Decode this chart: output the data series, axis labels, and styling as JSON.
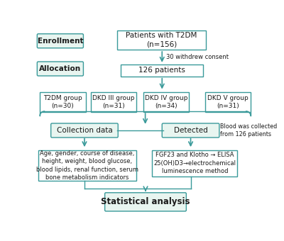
{
  "bg_color": "#ffffff",
  "teal": "#3a9a9a",
  "teal_fill": "#e8f5f0",
  "text_color": "#1a1a1a",
  "enrollment_label": "Enrollment",
  "allocation_label": "Allocation",
  "top_box_text": "Patients with T2DM\n(n=156)",
  "withdrew_text": "30 withdrew consent",
  "patients_box_text": "126 patients",
  "group_boxes": [
    "T2DM group\n(n=30)",
    "DKD III group\n(n=31)",
    "DKD IV group\n(n=34)",
    "DKD V group\n(n=31)"
  ],
  "collect_box_text": "Collection data",
  "detected_box_text": "Detected",
  "blood_note_text": "Blood was collected\nfrom 126 patients",
  "left_detail_text": "Age, gender, course of disease,\nheight, weight, blood glucose,\nblood lipids, renal function, serum\nbone metabolism indicators",
  "right_detail_text": "FGF23 and Klotho → ELISA\n25(OH)D3→electrochemical\nluminescence method",
  "stat_box_text": "Statistical analysis"
}
